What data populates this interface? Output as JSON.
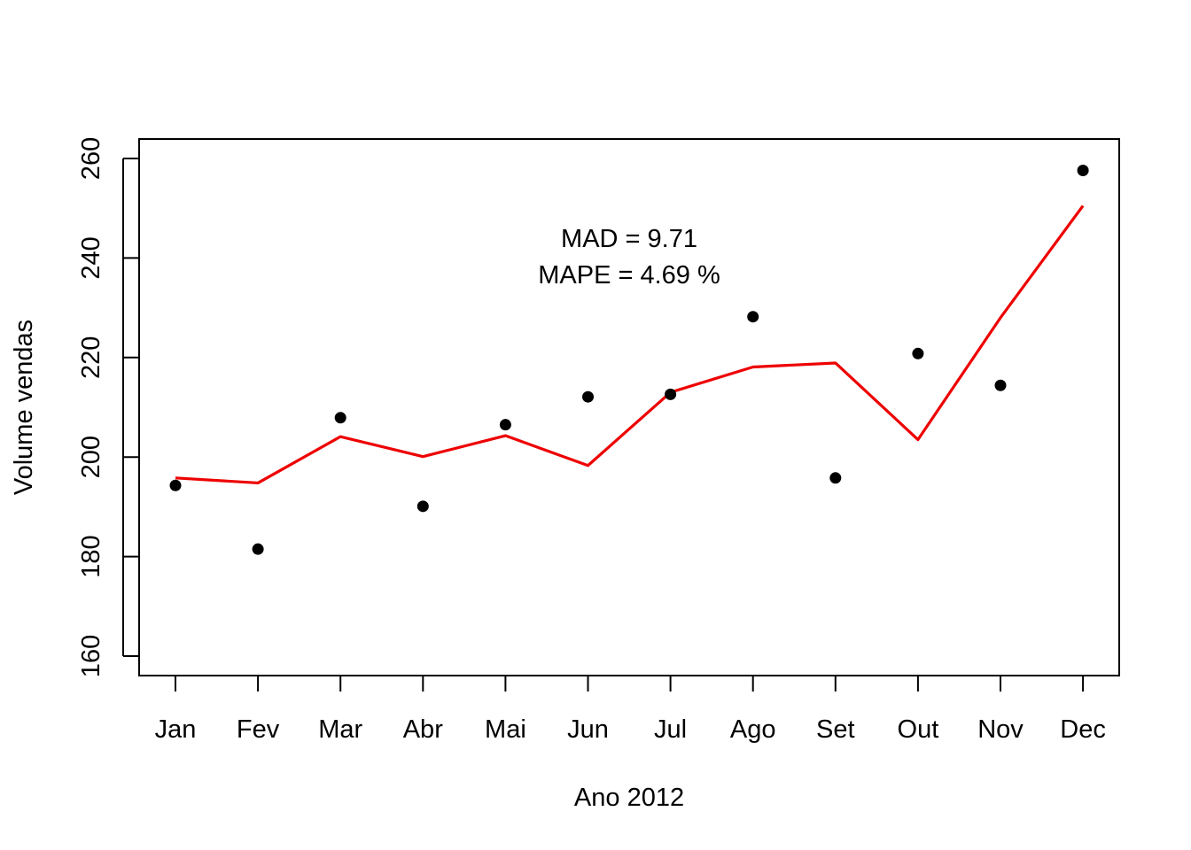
{
  "chart_data": {
    "type": "line",
    "title": "",
    "xlabel": "Ano 2012",
    "ylabel": "Volume vendas",
    "categories": [
      "Jan",
      "Fev",
      "Mar",
      "Abr",
      "Mai",
      "Jun",
      "Jul",
      "Ago",
      "Set",
      "Out",
      "Nov",
      "Dec"
    ],
    "ylim": [
      160,
      260
    ],
    "yticks": [
      160,
      180,
      200,
      220,
      240,
      260
    ],
    "grid": false,
    "series": [
      {
        "kind": "points",
        "color": "#000000",
        "values": [
          194.3,
          181.5,
          207.9,
          190.1,
          206.5,
          212.1,
          212.6,
          228.2,
          195.8,
          220.8,
          214.4,
          257.6
        ]
      },
      {
        "kind": "line",
        "color": "#ee0000",
        "values": [
          195.8,
          194.8,
          204.1,
          200.1,
          204.3,
          198.3,
          213.0,
          218.1,
          218.9,
          203.5,
          228.0,
          250.5
        ]
      }
    ],
    "annotations": [
      "MAD = 9.71",
      "MAPE = 4.69 %"
    ]
  }
}
